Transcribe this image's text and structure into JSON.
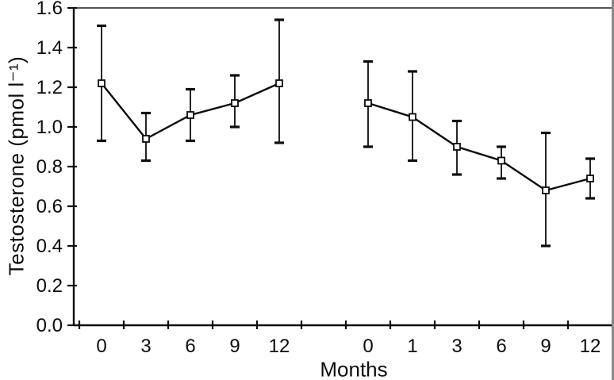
{
  "chart_data": {
    "type": "line",
    "title": "",
    "xlabel": "Months",
    "ylabel": "Testosterone (pmol l⁻¹)",
    "ylim": [
      0.0,
      1.6
    ],
    "ytick_step": 0.2,
    "ytick_labels": [
      "0.0",
      "0.2",
      "0.4",
      "0.6",
      "0.8",
      "1.0",
      "1.2",
      "1.4",
      "1.6"
    ],
    "x_axis": {
      "n_slots": 12,
      "gap_slot_index": 5,
      "tick_label_groups": [
        [
          "0",
          "3",
          "6",
          "9",
          "12"
        ],
        [
          "0",
          "1",
          "3",
          "6",
          "9",
          "12"
        ]
      ]
    },
    "legend": "none",
    "grid": "off",
    "marker": "open-square",
    "error_bars": true,
    "line_color": "#0c0c0c",
    "background_color": "#ffffff",
    "series": [
      {
        "name": "series-1",
        "points": [
          {
            "month": "0",
            "slot": 0,
            "y": 1.22,
            "err_lo": 0.93,
            "err_hi": 1.51
          },
          {
            "month": "3",
            "slot": 1,
            "y": 0.94,
            "err_lo": 0.83,
            "err_hi": 1.07
          },
          {
            "month": "6",
            "slot": 2,
            "y": 1.06,
            "err_lo": 0.93,
            "err_hi": 1.19
          },
          {
            "month": "9",
            "slot": 3,
            "y": 1.12,
            "err_lo": 1.0,
            "err_hi": 1.26
          },
          {
            "month": "12",
            "slot": 4,
            "y": 1.22,
            "err_lo": 0.92,
            "err_hi": 1.54
          }
        ]
      },
      {
        "name": "series-2",
        "points": [
          {
            "month": "0",
            "slot": 6,
            "y": 1.12,
            "err_lo": 0.9,
            "err_hi": 1.33
          },
          {
            "month": "1",
            "slot": 7,
            "y": 1.05,
            "err_lo": 0.83,
            "err_hi": 1.28
          },
          {
            "month": "3",
            "slot": 8,
            "y": 0.9,
            "err_lo": 0.76,
            "err_hi": 1.03
          },
          {
            "month": "6",
            "slot": 9,
            "y": 0.83,
            "err_lo": 0.74,
            "err_hi": 0.9
          },
          {
            "month": "9",
            "slot": 10,
            "y": 0.68,
            "err_lo": 0.4,
            "err_hi": 0.97
          },
          {
            "month": "12",
            "slot": 11,
            "y": 0.74,
            "err_lo": 0.64,
            "err_hi": 0.84
          }
        ]
      }
    ]
  }
}
